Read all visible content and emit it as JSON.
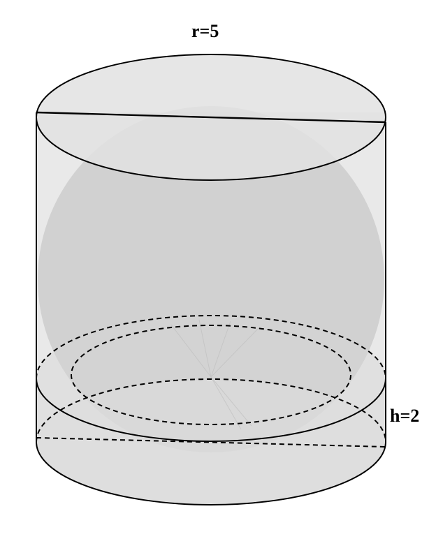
{
  "diagram": {
    "radius_label": "r=5",
    "height_label": "h=2"
  },
  "colors": {
    "sphere_fill": "#c8c8c8",
    "cylinder_fill": "#e6e6e6",
    "top_face_fill": "#e3e3e3",
    "band_fill": "#d7d7d7",
    "stroke": "#000000"
  }
}
